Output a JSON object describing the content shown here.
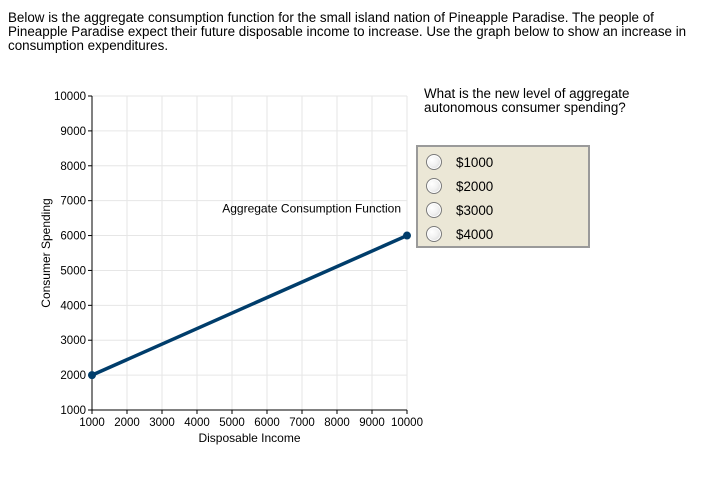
{
  "prompt": "Below is the aggregate consumption function for the small island nation of Pineapple Paradise. The people of Pineapple Paradise expect their future disposable income to increase. Use the graph below to show an increase in consumption expenditures.",
  "question": "What is the new level of aggregate autonomous consumer spending?",
  "options": [
    {
      "label": "$1000",
      "selected": false
    },
    {
      "label": "$2000",
      "selected": false
    },
    {
      "label": "$3000",
      "selected": false
    },
    {
      "label": "$4000",
      "selected": false
    }
  ],
  "colors": {
    "line": "#003d6b",
    "grid": "#e6e6e6",
    "axis": "#000000"
  },
  "chart_data": {
    "type": "line",
    "xlabel": "Disposable Income",
    "ylabel": "Consumer Spending",
    "xlim": [
      1000,
      10000
    ],
    "ylim": [
      1000,
      10000
    ],
    "xticks": [
      1000,
      2000,
      3000,
      4000,
      5000,
      6000,
      7000,
      8000,
      9000,
      10000
    ],
    "yticks": [
      1000,
      2000,
      3000,
      4000,
      5000,
      6000,
      7000,
      8000,
      9000,
      10000
    ],
    "grid": true,
    "series": [
      {
        "name": "Aggregate Consumption Function",
        "points": [
          [
            1000,
            2000
          ],
          [
            10000,
            6000
          ]
        ]
      }
    ]
  }
}
